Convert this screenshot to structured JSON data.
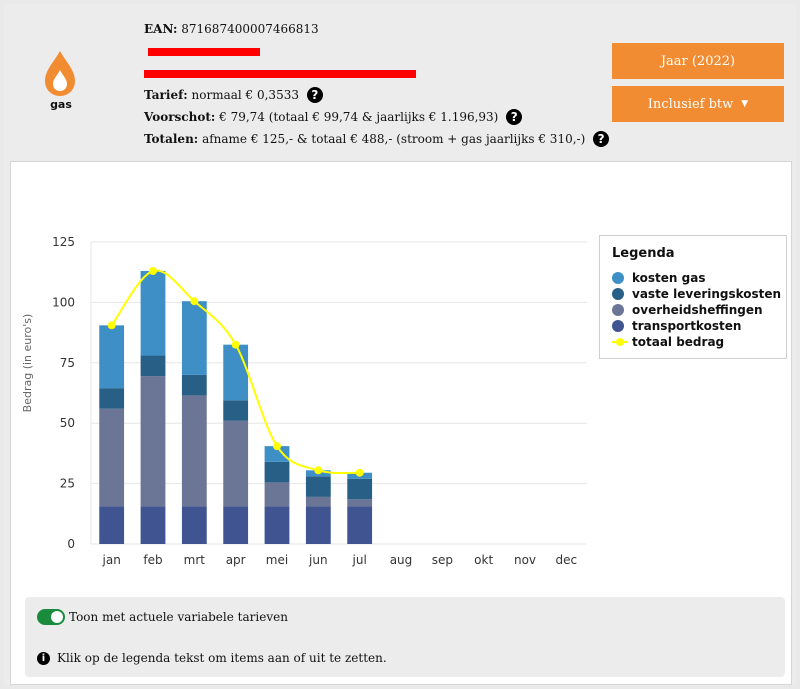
{
  "header": {
    "icon_name": "flame-icon",
    "energy_type": "gas",
    "ean_label": "EAN:",
    "ean_value": "871687400007466813",
    "tarief_label": "Tarief:",
    "tarief_value": "normaal € 0,3533",
    "voorschot_label": "Voorschot:",
    "voorschot_value": "€ 79,74 (totaal € 99,74 & jaarlijks € 1.196,93)",
    "totalen_label": "Totalen:",
    "totalen_value": "afname € 125,- & totaal € 488,- (stroom + gas jaarlijks € 310,-)",
    "accent_color": "#f28c32"
  },
  "buttons": {
    "year": "Jaar (2022)",
    "vat": "Inclusief btw"
  },
  "legend": {
    "title": "Legenda"
  },
  "footer": {
    "toggle_label": "Toon met actuele variabele tarieven",
    "toggle_on": true,
    "hint": "Klik op de legenda tekst om items aan of uit te zetten."
  },
  "chart_data": {
    "type": "bar",
    "stacked": true,
    "ylabel": "Bedrag (in euro's)",
    "ylim": [
      0,
      125
    ],
    "yticks": [
      0,
      25,
      50,
      75,
      100,
      125
    ],
    "grid": true,
    "legend_position": "right",
    "categories": [
      "jan",
      "feb",
      "mrt",
      "apr",
      "mei",
      "jun",
      "jul",
      "aug",
      "sep",
      "okt",
      "nov",
      "dec"
    ],
    "series": [
      {
        "name": "transportkosten",
        "color": "#3f5491",
        "values": [
          15.5,
          15.5,
          15.5,
          15.5,
          15.5,
          15.5,
          15.5,
          null,
          null,
          null,
          null,
          null
        ]
      },
      {
        "name": "overheidsheffingen",
        "color": "#6b7595",
        "values": [
          40.5,
          54,
          46,
          35.5,
          10,
          4,
          3,
          null,
          null,
          null,
          null,
          null
        ]
      },
      {
        "name": "vaste leveringskosten",
        "color": "#275f86",
        "values": [
          8.5,
          8.5,
          8.5,
          8.5,
          8.5,
          8.5,
          8.5,
          null,
          null,
          null,
          null,
          null
        ]
      },
      {
        "name": "kosten gas",
        "color": "#3d8fc6",
        "values": [
          26,
          35,
          30.5,
          23,
          6.5,
          2.5,
          2.5,
          null,
          null,
          null,
          null,
          null
        ]
      },
      {
        "name": "totaal bedrag",
        "type": "line",
        "color": "#ffff00",
        "values": [
          90.5,
          113,
          100.5,
          82.5,
          40.5,
          30.5,
          29.5,
          null,
          null,
          null,
          null,
          null
        ]
      }
    ]
  }
}
